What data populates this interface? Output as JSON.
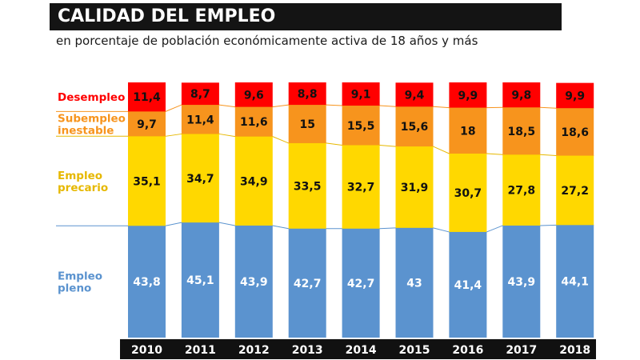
{
  "title": "CALIDAD DEL EMPLEO",
  "subtitle": "en porcentaje de población económicamente activa de 18 años y más",
  "chart_data": {
    "type": "bar",
    "stacked": true,
    "categories": [
      "2010",
      "2011",
      "2012",
      "2013",
      "2014",
      "2015",
      "2016",
      "2017",
      "2018"
    ],
    "series": [
      {
        "name": "Empleo pleno",
        "label_lines": [
          "Empleo",
          "pleno"
        ],
        "color": "#5b93cf",
        "label_color": "#5b93cf",
        "value_color": "#ffffff",
        "values": [
          43.8,
          45.1,
          43.9,
          42.7,
          42.7,
          43,
          41.4,
          43.9,
          44.1
        ],
        "labels": [
          "43,8",
          "45,1",
          "43,9",
          "42,7",
          "42,7",
          "43",
          "41,4",
          "43,9",
          "44,1"
        ]
      },
      {
        "name": "Empleo precario",
        "label_lines": [
          "Empleo",
          "precario"
        ],
        "color": "#ffd800",
        "label_color": "#e6b800",
        "value_color": "#111111",
        "values": [
          35.1,
          34.7,
          34.9,
          33.5,
          32.7,
          31.9,
          30.7,
          27.8,
          27.2
        ],
        "labels": [
          "35,1",
          "34,7",
          "34,9",
          "33,5",
          "32,7",
          "31,9",
          "30,7",
          "27,8",
          "27,2"
        ]
      },
      {
        "name": "Subempleo inestable",
        "label_lines": [
          "Subempleo",
          "inestable"
        ],
        "color": "#f7941d",
        "label_color": "#f7941d",
        "value_color": "#111111",
        "values": [
          9.7,
          11.4,
          11.6,
          15,
          15.5,
          15.6,
          18,
          18.5,
          18.6
        ],
        "labels": [
          "9,7",
          "11,4",
          "11,6",
          "15",
          "15,5",
          "15,6",
          "18",
          "18,5",
          "18,6"
        ]
      },
      {
        "name": "Desempleo",
        "label_lines": [
          "Desempleo"
        ],
        "color": "#ff0000",
        "label_color": "#ff0000",
        "value_color": "#111111",
        "values": [
          11.4,
          8.7,
          9.6,
          8.8,
          9.1,
          9.4,
          9.9,
          9.8,
          9.9
        ],
        "labels": [
          "11,4",
          "8,7",
          "9,6",
          "8,8",
          "9,1",
          "9,4",
          "9,9",
          "9,8",
          "9,9"
        ]
      }
    ],
    "ylim": [
      0,
      100
    ],
    "legend": "left",
    "grid": false
  }
}
